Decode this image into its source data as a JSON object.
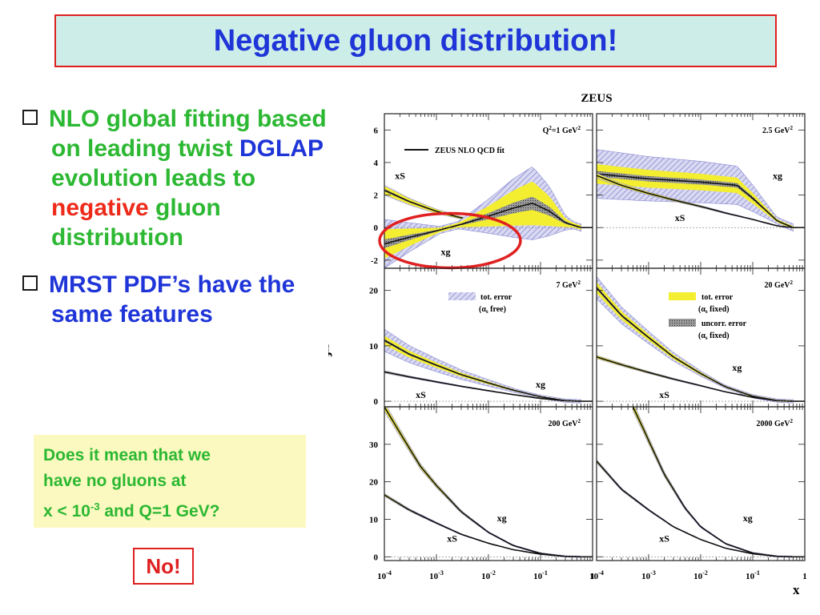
{
  "title": "Negative gluon distribution!",
  "bullets": [
    {
      "parts": [
        {
          "text": "NLO global fitting based on leading twist ",
          "color": "#2cb832"
        },
        {
          "text": "DGLAP",
          "color": "#1f35d8"
        },
        {
          "text": " evolution leads to ",
          "color": "#2cb832"
        },
        {
          "text": "negative",
          "color": "#ee2a1a"
        },
        {
          "text": " gluon distribution",
          "color": "#2cb832"
        }
      ]
    },
    {
      "parts": [
        {
          "text": "MRST PDF’s have the same features",
          "color": "#1f35d8"
        }
      ]
    }
  ],
  "question": {
    "line1": "Does it mean that we",
    "line2": "have no gluons at",
    "line3_prefix": "x < 10",
    "line3_sup": "-3",
    "line3_suffix": " and Q=1 GeV?"
  },
  "answer": "No!",
  "chart_data": {
    "type": "line",
    "title": "ZEUS",
    "xlabel": "x",
    "ylabel": "xf",
    "xscale": "log",
    "xlim": [
      0.0001,
      1
    ],
    "x_ticks": [
      {
        "base": "10",
        "exp": "-4"
      },
      {
        "base": "10",
        "exp": "-3"
      },
      {
        "base": "10",
        "exp": "-2"
      },
      {
        "base": "10",
        "exp": "-1"
      },
      {
        "base": "1",
        "exp": ""
      }
    ],
    "colors": {
      "band_total": "#b8b8e6",
      "band_fixed": "#f4ee30",
      "band_uncorr": "#888888",
      "line": "#111111",
      "circle": "#e02020"
    },
    "legend": {
      "fit": "ZEUS NLO QCD fit",
      "tot_free_1": "tot. error",
      "tot_free_2": "(α",
      "tot_free_sub": "s",
      "tot_free_3": " free)",
      "tot_fixed_1": "tot. error",
      "tot_fixed_2": "(α",
      "tot_fixed_sub": "s",
      "tot_fixed_3": " fixed)",
      "uncorr_1": "uncorr. error",
      "uncorr_2": "(α",
      "uncorr_sub": "s",
      "uncorr_3": " fixed)"
    },
    "panels": [
      {
        "id": "q1",
        "label_prefix": "Q",
        "label_sup_pre": "2",
        "label_main": "=1 GeV",
        "label_sup": "2",
        "ylim": [
          -2.5,
          7
        ],
        "yticks": [
          -2,
          0,
          2,
          4,
          6
        ],
        "show_yticks": true,
        "series": [
          {
            "name": "xS",
            "x": [
              0.0001,
              0.0003,
              0.001,
              0.003,
              0.01,
              0.03,
              0.1,
              0.3,
              0.6
            ],
            "y": [
              2.3,
              1.6,
              1.0,
              0.6,
              0.3,
              0.15,
              0.05,
              0.0,
              0.0
            ],
            "band_fixed": 0.25,
            "band_total": 0.3
          },
          {
            "name": "xg",
            "x": [
              0.0001,
              0.0003,
              0.001,
              0.003,
              0.01,
              0.03,
              0.07,
              0.15,
              0.3,
              0.6
            ],
            "y": [
              -1.0,
              -0.6,
              -0.2,
              0.2,
              0.7,
              1.2,
              1.5,
              1.0,
              0.3,
              0.0
            ],
            "band_fixed": 0.9,
            "band_total": 1.5
          }
        ],
        "series_labels": [
          {
            "text": "xS",
            "x": 0.0002,
            "y": 3.0
          },
          {
            "text": "xg",
            "x": 0.0015,
            "y": -1.7
          }
        ],
        "circle": true
      },
      {
        "id": "q2",
        "label_main": "2.5 GeV",
        "label_sup": "2",
        "ylim": [
          -2.5,
          7
        ],
        "yticks": [
          -2,
          0,
          2,
          4,
          6
        ],
        "show_yticks": false,
        "series": [
          {
            "name": "xg",
            "x": [
              0.0001,
              0.001,
              0.01,
              0.05,
              0.1,
              0.3,
              0.6
            ],
            "y": [
              3.3,
              3.0,
              2.8,
              2.6,
              1.8,
              0.4,
              0.0
            ],
            "band_fixed": 0.6,
            "band_total": 1.5
          },
          {
            "name": "xS",
            "x": [
              0.0001,
              0.0003,
              0.001,
              0.003,
              0.01,
              0.03,
              0.1,
              0.3,
              0.6
            ],
            "y": [
              3.2,
              2.6,
              2.1,
              1.7,
              1.3,
              0.9,
              0.5,
              0.1,
              0.0
            ],
            "band_fixed": 0.12,
            "band_total": 0.15
          }
        ],
        "series_labels": [
          {
            "text": "xg",
            "x": 0.3,
            "y": 3.0
          },
          {
            "text": "xS",
            "x": 0.004,
            "y": 0.4
          }
        ]
      },
      {
        "id": "q3",
        "label_main": "7 GeV",
        "label_sup": "2",
        "ylim": [
          -1,
          24
        ],
        "yticks": [
          0,
          10,
          20
        ],
        "show_yticks": true,
        "series": [
          {
            "name": "xg",
            "x": [
              0.0001,
              0.0003,
              0.001,
              0.003,
              0.01,
              0.03,
              0.1,
              0.3,
              0.6
            ],
            "y": [
              11,
              8.5,
              6.5,
              4.8,
              3.3,
              2.0,
              0.8,
              0.1,
              0.0
            ],
            "band_fixed": 0.8,
            "band_total": 2.0
          },
          {
            "name": "xS",
            "x": [
              0.0001,
              0.0003,
              0.001,
              0.003,
              0.01,
              0.03,
              0.1,
              0.3,
              0.6
            ],
            "y": [
              5.3,
              4.4,
              3.5,
              2.7,
              1.9,
              1.2,
              0.5,
              0.1,
              0.0
            ],
            "band_fixed": 0.15,
            "band_total": 0.2
          }
        ],
        "series_labels": [
          {
            "text": "xg",
            "x": 0.1,
            "y": 2.5
          },
          {
            "text": "xS",
            "x": 0.0005,
            "y": 0.6
          }
        ]
      },
      {
        "id": "q4",
        "label_main": "20 GeV",
        "label_sup": "2",
        "ylim": [
          -1,
          24
        ],
        "yticks": [
          0,
          10,
          20
        ],
        "show_yticks": false,
        "series": [
          {
            "name": "xg",
            "x": [
              0.0001,
              0.0003,
              0.001,
              0.003,
              0.01,
              0.03,
              0.1,
              0.3,
              0.6
            ],
            "y": [
              20.5,
              15.5,
              11.5,
              8.0,
              5.0,
              2.6,
              0.9,
              0.1,
              0.0
            ],
            "band_fixed": 1.0,
            "band_total": 2.0
          },
          {
            "name": "xS",
            "x": [
              0.0001,
              0.0003,
              0.001,
              0.003,
              0.01,
              0.03,
              0.1,
              0.3,
              0.6
            ],
            "y": [
              8.0,
              6.6,
              5.2,
              4.0,
              2.8,
              1.7,
              0.7,
              0.1,
              0.0
            ],
            "band_fixed": 0.25,
            "band_total": 0.3
          }
        ],
        "series_labels": [
          {
            "text": "xg",
            "x": 0.05,
            "y": 5.5
          },
          {
            "text": "xS",
            "x": 0.002,
            "y": 0.6
          }
        ]
      },
      {
        "id": "q5",
        "label_main": "200 GeV",
        "label_sup": "2",
        "ylim": [
          -1,
          40
        ],
        "yticks": [
          0,
          10,
          20,
          30
        ],
        "show_yticks": true,
        "series": [
          {
            "name": "xg",
            "x": [
              0.0001,
              0.0002,
              0.0005,
              0.001,
              0.003,
              0.01,
              0.03,
              0.1,
              0.3,
              0.6
            ],
            "y": [
              40,
              33,
              24,
              19,
              12,
              6.5,
              3.0,
              0.9,
              0.1,
              0.0
            ],
            "band_fixed": 0.9,
            "band_total": 1.2
          },
          {
            "name": "xS",
            "x": [
              0.0001,
              0.0003,
              0.001,
              0.003,
              0.01,
              0.03,
              0.1,
              0.3,
              0.6
            ],
            "y": [
              16.5,
              12.5,
              9.0,
              6.0,
              3.6,
              1.9,
              0.7,
              0.1,
              0.0
            ],
            "band_fixed": 0.3,
            "band_total": 0.4
          }
        ],
        "series_labels": [
          {
            "text": "xg",
            "x": 0.018,
            "y": 9.5
          },
          {
            "text": "xS",
            "x": 0.002,
            "y": 4.0
          }
        ]
      },
      {
        "id": "q6",
        "label_main": "2000 GeV",
        "label_sup": "2",
        "ylim": [
          -1,
          40
        ],
        "yticks": [
          0,
          10,
          20,
          30
        ],
        "show_yticks": false,
        "series": [
          {
            "name": "xg",
            "x": [
              0.0005,
              0.0008,
              0.001,
              0.002,
              0.005,
              0.01,
              0.03,
              0.1,
              0.3,
              0.6
            ],
            "y": [
              40,
              34,
              31,
              22,
              13,
              8.0,
              3.5,
              1.0,
              0.1,
              0.0
            ],
            "band_fixed": 0.9,
            "band_total": 1.2
          },
          {
            "name": "xS",
            "x": [
              0.0001,
              0.0003,
              0.001,
              0.003,
              0.01,
              0.03,
              0.1,
              0.3,
              0.6
            ],
            "y": [
              25.5,
              18,
              12.5,
              8.0,
              4.6,
              2.3,
              0.8,
              0.1,
              0.0
            ],
            "band_fixed": 0.35,
            "band_total": 0.45
          }
        ],
        "series_labels": [
          {
            "text": "xg",
            "x": 0.08,
            "y": 9.5
          },
          {
            "text": "xS",
            "x": 0.002,
            "y": 4.0
          }
        ]
      }
    ]
  }
}
